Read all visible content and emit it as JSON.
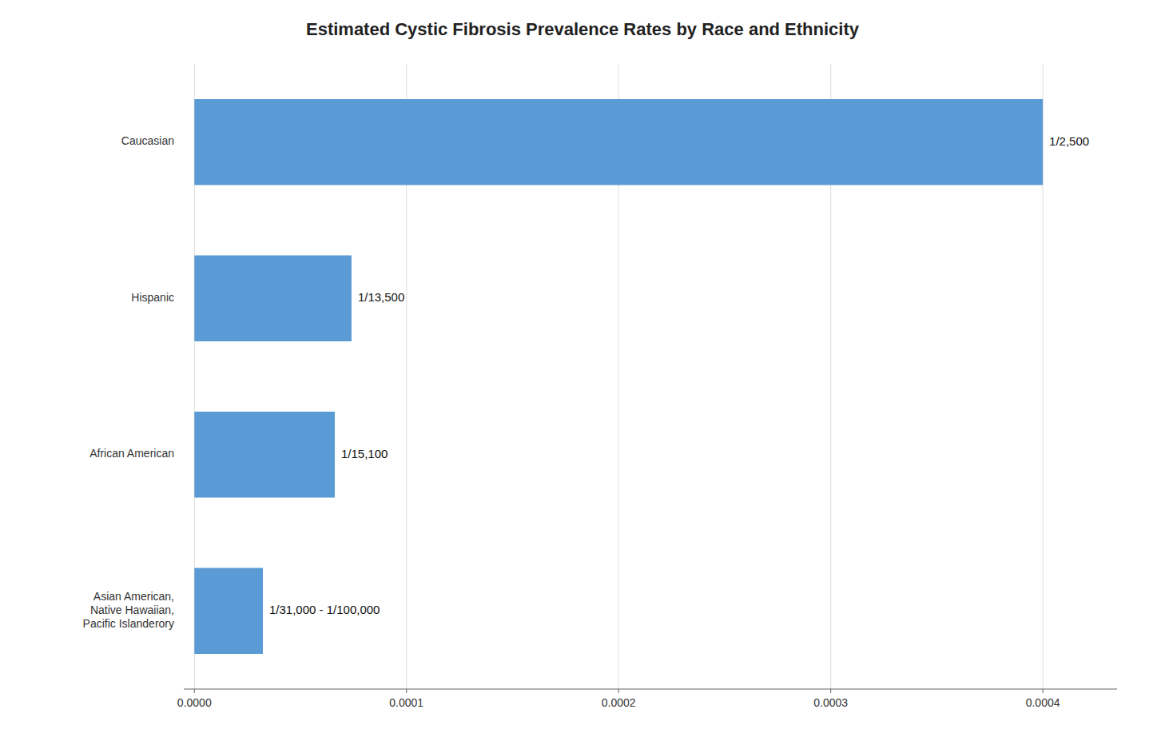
{
  "chart_data": {
    "type": "bar",
    "orientation": "horizontal",
    "title": "Estimated Cystic Fibrosis Prevalence Rates by Race and Ethnicity",
    "categories": [
      "Asian American,\nNative Hawaiian,\nPacific Islanderory",
      "African American",
      "Hispanic",
      "Caucasian"
    ],
    "values": [
      3.23e-05,
      6.62e-05,
      7.4074e-05,
      0.0004
    ],
    "value_labels": [
      "1/31,000 - 1/100,000",
      "1/15,100",
      "1/13,500",
      "1/2,500"
    ],
    "data_labels": true,
    "color": "#5B9BD5",
    "xlim": [
      -5e-06,
      0.000435
    ],
    "xticks": [
      {
        "value": 0,
        "label": "0.0000"
      },
      0.0001,
      0.0002,
      0.0003,
      0.0004
    ],
    "grid": true
  }
}
